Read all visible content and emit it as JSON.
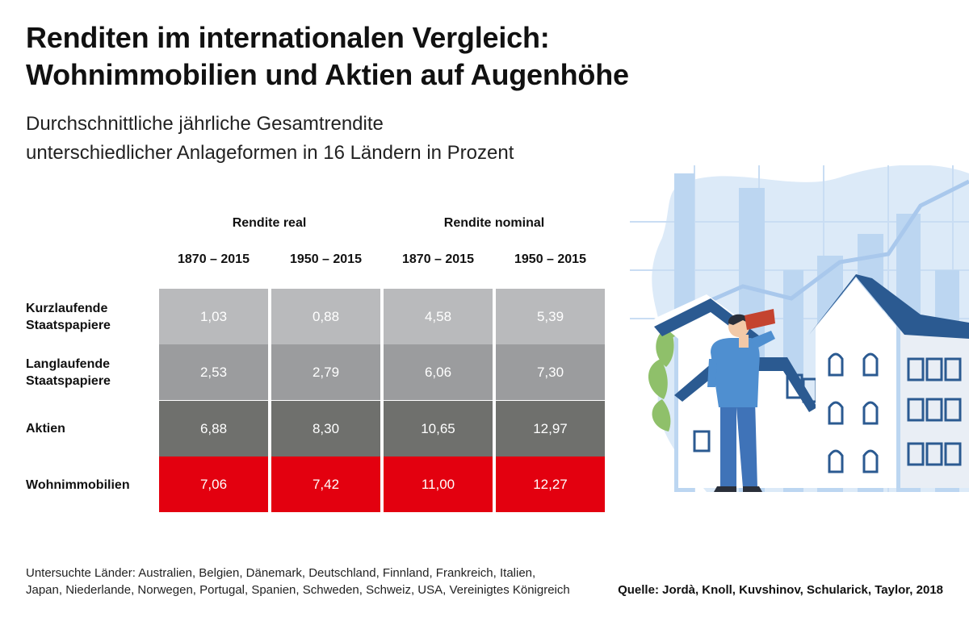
{
  "title_lines": [
    "Renditen im internationalen Vergleich:",
    "Wohnimmobilien und Aktien auf Augenhöhe"
  ],
  "subtitle_lines": [
    "Durchschnittliche jährliche Gesamtrendite",
    "unterschiedlicher Anlageformen in 16 Ländern in Prozent"
  ],
  "column_groups": [
    "Rendite real",
    "Rendite nominal"
  ],
  "footer": {
    "countries_lines": [
      "Untersuchte Länder: Australien, Belgien, Dänemark, Deutschland, Finnland, Frankreich, Italien,",
      "Japan, Niederlande, Norwegen, Portugal, Spanien, Schweden, Schweiz, USA, Vereinigtes Königreich"
    ],
    "source": "Quelle: Jordà, Knoll, Kuvshinov, Schularick, Taylor, 2018"
  },
  "row_colors": [
    "#b9babc",
    "#9b9c9e",
    "#6f706d",
    "#e3000f"
  ],
  "chart_data": {
    "type": "table",
    "columns": [
      {
        "group": "Rendite real",
        "label": "1870 – 2015"
      },
      {
        "group": "Rendite real",
        "label": "1950 – 2015"
      },
      {
        "group": "Rendite nominal",
        "label": "1870 – 2015"
      },
      {
        "group": "Rendite nominal",
        "label": "1950 – 2015"
      }
    ],
    "rows": [
      {
        "label_lines": [
          "Kurzlaufende",
          "Staatspapiere"
        ],
        "values": [
          "1,03",
          "0,88",
          "4,58",
          "5,39"
        ]
      },
      {
        "label_lines": [
          "Langlaufende",
          "Staatspapiere"
        ],
        "values": [
          "2,53",
          "2,79",
          "6,06",
          "7,30"
        ]
      },
      {
        "label_lines": [
          "Aktien"
        ],
        "values": [
          "6,88",
          "8,30",
          "10,65",
          "12,97"
        ]
      },
      {
        "label_lines": [
          "Wohnimmobilien"
        ],
        "values": [
          "7,06",
          "7,42",
          "11,00",
          "12,27"
        ]
      }
    ]
  },
  "illustration": {
    "icon": "man-with-telescope-looking-at-houses-icon",
    "colors": {
      "background": "#dceaf8",
      "bars": "#bcd6f1",
      "roof": "#2b5a91",
      "wall": "#ffffff",
      "plant": "#8fc06a",
      "person": "#3f7fc1"
    }
  }
}
